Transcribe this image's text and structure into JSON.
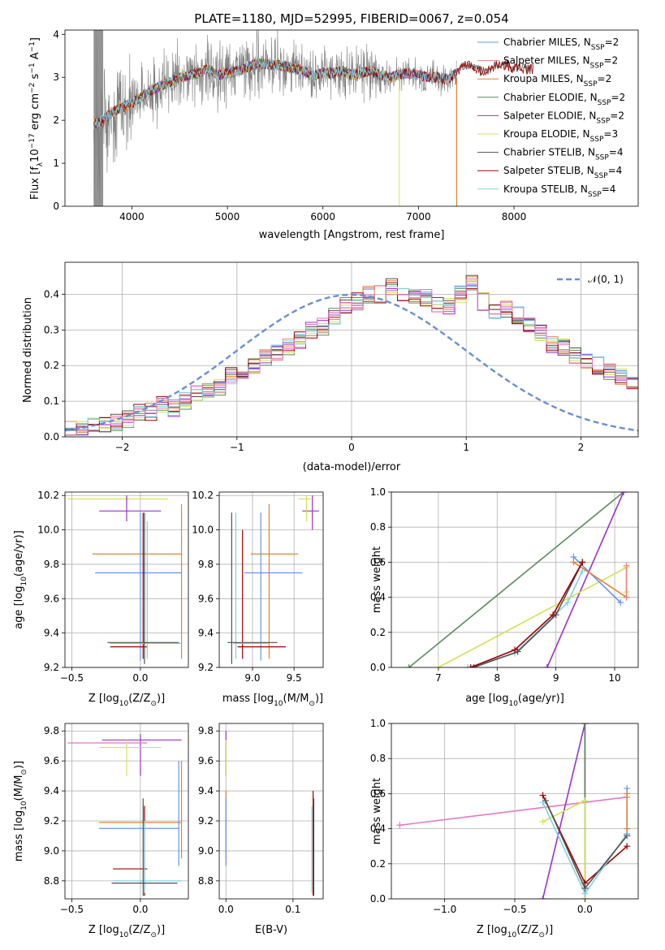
{
  "figure": {
    "title": "PLATE=1180, MJD=52995, FIBERID=0067, z=0.054"
  },
  "colors": {
    "chabrier_miles": "#6495ed",
    "salpeter_miles": "#f08080",
    "kroupa_miles": "#e88030",
    "chabrier_elodie": "#5a8a5a",
    "salpeter_elodie": "#9932cc",
    "kroupa_elodie": "#d4e157",
    "chabrier_stelib": "#505050",
    "salpeter_stelib": "#a00000",
    "kroupa_stelib": "#80d0e0",
    "data": "#808080",
    "pink": "#e377c2"
  },
  "chart_data": [
    {
      "id": "spectrum",
      "type": "line",
      "xlabel": "wavelength [Angstrom, rest frame]",
      "ylabel": "Flux [f$_\\lambda$10$^{-17}$ erg cm$^{-2}$ s$^{-1}$ A$^{-1}$]",
      "ylabel_main": "Flux [f",
      "ylabel_sub": "λ",
      "ylabel_rest": "10",
      "ylabel_e1": "−17",
      "ylabel_mid1": " erg cm",
      "ylabel_e2": "−2",
      "ylabel_mid2": " s",
      "ylabel_e3": "−1",
      "ylabel_mid3": " A",
      "ylabel_e4": "−1",
      "ylabel_end": "]",
      "xlim": [
        3300,
        9300
      ],
      "ylim": [
        0,
        4.1
      ],
      "xticks": [
        "4000",
        "5000",
        "6000",
        "7000",
        "8000"
      ],
      "yticks": [
        "0",
        "1",
        "2",
        "3",
        "4"
      ],
      "legend": [
        {
          "label": "Chabrier MILES, N",
          "n": "2"
        },
        {
          "label": "Salpeter MILES, N",
          "n": "2"
        },
        {
          "label": "Kroupa MILES, N",
          "n": "2"
        },
        {
          "label": "Chabrier ELODIE, N",
          "n": "2"
        },
        {
          "label": "Salpeter ELODIE, N",
          "n": "2"
        },
        {
          "label": "Kroupa ELODIE, N",
          "n": "3"
        },
        {
          "label": "Chabrier STELIB, N",
          "n": "4"
        },
        {
          "label": "Salpeter STELIB, N",
          "n": "4"
        },
        {
          "label": "Kroupa STELIB, N",
          "n": "4"
        }
      ],
      "legend_sub": "SSP",
      "continuum": [
        [
          3600,
          1.9
        ],
        [
          3700,
          2.0
        ],
        [
          3800,
          2.2
        ],
        [
          3900,
          2.3
        ],
        [
          4000,
          2.4
        ],
        [
          4100,
          2.55
        ],
        [
          4200,
          2.7
        ],
        [
          4300,
          2.8
        ],
        [
          4400,
          2.9
        ],
        [
          4500,
          3.0
        ],
        [
          4600,
          3.05
        ],
        [
          4700,
          3.1
        ],
        [
          4800,
          3.2
        ],
        [
          4900,
          3.05
        ],
        [
          5000,
          3.1
        ],
        [
          5100,
          3.15
        ],
        [
          5200,
          3.2
        ],
        [
          5300,
          3.35
        ],
        [
          5400,
          3.3
        ],
        [
          5500,
          3.3
        ],
        [
          5600,
          3.25
        ],
        [
          5700,
          3.2
        ],
        [
          5800,
          3.15
        ],
        [
          5900,
          3.05
        ],
        [
          6000,
          3.1
        ],
        [
          6100,
          3.1
        ],
        [
          6200,
          3.15
        ],
        [
          6300,
          3.05
        ],
        [
          6400,
          3.1
        ],
        [
          6500,
          3.15
        ],
        [
          6600,
          3.05
        ],
        [
          6700,
          3.0
        ],
        [
          6800,
          3.05
        ],
        [
          6900,
          3.1
        ],
        [
          7000,
          3.05
        ],
        [
          7100,
          3.0
        ],
        [
          7200,
          3.0
        ],
        [
          7300,
          2.95
        ],
        [
          7400,
          3.1
        ],
        [
          7500,
          3.3
        ],
        [
          7600,
          3.2
        ],
        [
          7700,
          3.1
        ],
        [
          7800,
          3.25
        ],
        [
          7900,
          3.3
        ],
        [
          8000,
          3.2
        ],
        [
          8100,
          3.2
        ],
        [
          8200,
          3.2
        ]
      ]
    },
    {
      "id": "residuals",
      "type": "histogram",
      "xlabel": "(data-model)/error",
      "ylabel": "Normed distribution",
      "xlim": [
        -2.5,
        2.5
      ],
      "ylim": [
        0,
        0.49
      ],
      "xticks": [
        "−2",
        "−1",
        "0",
        "1",
        "2"
      ],
      "yticks": [
        "0.0",
        "0.1",
        "0.2",
        "0.3",
        "0.4"
      ],
      "grid": true,
      "legend": "$\\mathcal{N}(0,1)$",
      "legend_text": "𝒩(0, 1)",
      "bin_width": 0.1,
      "bin_start": -2.5,
      "base_values": [
        0.02,
        0.02,
        0.03,
        0.03,
        0.04,
        0.05,
        0.07,
        0.07,
        0.09,
        0.08,
        0.1,
        0.12,
        0.13,
        0.14,
        0.17,
        0.18,
        0.2,
        0.22,
        0.24,
        0.25,
        0.27,
        0.3,
        0.31,
        0.34,
        0.37,
        0.38,
        0.4,
        0.4,
        0.42,
        0.4,
        0.39,
        0.39,
        0.37,
        0.37,
        0.4,
        0.43,
        0.38,
        0.35,
        0.36,
        0.34,
        0.31,
        0.29,
        0.26,
        0.25,
        0.23,
        0.21,
        0.2,
        0.18,
        0.17,
        0.15,
        0.14,
        0.12,
        0.12,
        0.1,
        0.09,
        0.08,
        0.08,
        0.07,
        0.06,
        0.04,
        0.03,
        0.02,
        0.02,
        0.02,
        0.02
      ]
    },
    {
      "id": "age_vs_Z",
      "type": "scatter",
      "xlabel": "Z [log$_{10}$(Z/Z$_\\odot$)]",
      "xlabel_text": "Z [log",
      "xlabel_sub": "10",
      "xlabel_rest": "(Z/Z",
      "xlabel_sun": "⊙",
      "xlabel_end": ")]",
      "ylabel": "age  [log$_{10}$(age/yr)]",
      "ylabel_text": "age  [log",
      "ylabel_sub": "10",
      "ylabel_rest": "(age/yr)]",
      "xlim": [
        -0.55,
        0.35
      ],
      "ylim": [
        9.2,
        10.22
      ],
      "xticks": [
        "−0.5",
        "0.0"
      ],
      "yticks": [
        "9.2",
        "9.4",
        "9.6",
        "9.8",
        "10.0",
        "10.2"
      ],
      "grid": true
    },
    {
      "id": "age_vs_mass",
      "type": "scatter",
      "xlabel": "mass [log$_{10}$(M/M$_\\odot$)]",
      "xlabel_text": "mass [log",
      "xlabel_sub": "10",
      "xlabel_rest": "(M/M",
      "xlabel_sun": "⊙",
      "xlabel_end": ")]",
      "xlim": [
        8.6,
        9.85
      ],
      "ylim": [
        9.2,
        10.22
      ],
      "xticks": [
        "9.0",
        "9.5"
      ],
      "yticks": [
        "9.2",
        "9.4",
        "9.6",
        "9.8",
        "10.0",
        "10.2"
      ],
      "grid": true
    },
    {
      "id": "massweight_vs_age",
      "type": "line",
      "xlabel": "age  [log$_{10}$(age/yr)]",
      "xlabel_text": "age  [log",
      "xlabel_sub": "10",
      "xlabel_rest": "(age/yr)]",
      "ylabel": "mass weight",
      "xlim": [
        6.2,
        10.4
      ],
      "ylim": [
        0,
        1.0
      ],
      "xticks": [
        "7",
        "8",
        "9",
        "10"
      ],
      "yticks": [
        "0.0",
        "0.2",
        "0.4",
        "0.6",
        "0.8",
        "1.0"
      ],
      "grid": true,
      "series": [
        {
          "color": "chabrier_elodie",
          "x": [
            6.5,
            10.15
          ],
          "y": [
            0.0,
            1.0
          ]
        },
        {
          "color": "salpeter_elodie",
          "x": [
            8.85,
            10.15
          ],
          "y": [
            0.0,
            1.0
          ]
        },
        {
          "color": "kroupa_elodie",
          "x": [
            7.0,
            10.2,
            10.2
          ],
          "y": [
            0.0,
            0.57,
            0.43
          ]
        },
        {
          "color": "kroupa_stelib",
          "x": [
            7.5,
            8.3,
            9.2,
            9.45
          ],
          "y": [
            0.0,
            0.08,
            0.37,
            0.55
          ]
        },
        {
          "color": "chabrier_miles",
          "x": [
            9.3,
            10.1
          ],
          "y": [
            0.63,
            0.37
          ]
        },
        {
          "color": "kroupa_miles",
          "x": [
            9.3,
            10.2
          ],
          "y": [
            0.6,
            0.4
          ]
        },
        {
          "color": "salpeter_miles",
          "x": [
            10.2,
            10.2
          ],
          "y": [
            0.58,
            0.4
          ]
        },
        {
          "color": "chabrier_stelib",
          "x": [
            7.6,
            8.35,
            9.0,
            9.45
          ],
          "y": [
            0.0,
            0.09,
            0.3,
            0.6
          ]
        },
        {
          "color": "salpeter_stelib",
          "x": [
            7.55,
            8.3,
            8.95,
            9.45
          ],
          "y": [
            0.0,
            0.1,
            0.3,
            0.6
          ]
        }
      ]
    },
    {
      "id": "mass_vs_Z",
      "type": "scatter",
      "xlabel": "Z [log$_{10}$(Z/Z$_\\odot$)]",
      "xlabel_text": "Z [log",
      "xlabel_sub": "10",
      "xlabel_rest": "(Z/Z",
      "xlabel_sun": "⊙",
      "xlabel_end": ")]",
      "ylabel": "mass [log$_{10}$(M/M$_\\odot$)]",
      "ylabel_text": "mass [log",
      "ylabel_sub": "10",
      "ylabel_rest": "(M/M",
      "ylabel_sun": "⊙",
      "ylabel_end": ")]",
      "xlim": [
        -0.55,
        0.35
      ],
      "ylim": [
        8.68,
        9.85
      ],
      "xticks": [
        "−0.5",
        "0.0"
      ],
      "yticks": [
        "8.8",
        "9.0",
        "9.2",
        "9.4",
        "9.6",
        "9.8"
      ],
      "grid": true
    },
    {
      "id": "mass_vs_ebv",
      "type": "scatter",
      "xlabel": "E(B-V)",
      "xlim": [
        -0.01,
        0.145
      ],
      "ylim": [
        8.68,
        9.85
      ],
      "xticks": [
        "0.0",
        "0.1"
      ],
      "yticks": [
        "8.8",
        "9.0",
        "9.2",
        "9.4",
        "9.6",
        "9.8"
      ],
      "grid": true
    },
    {
      "id": "massweight_vs_Z",
      "type": "line",
      "xlabel": "Z [log$_{10}$(Z/Z$_\\odot$)]",
      "xlabel_text": "Z [log",
      "xlabel_sub": "10",
      "xlabel_rest": "(Z/Z",
      "xlabel_sun": "⊙",
      "xlabel_end": ")]",
      "ylabel": "mass weight",
      "xlim": [
        -1.38,
        0.38
      ],
      "ylim": [
        0,
        1.0
      ],
      "xticks": [
        "−1.0",
        "−0.5",
        "0.0"
      ],
      "yticks": [
        "0.0",
        "0.2",
        "0.4",
        "0.6",
        "0.8",
        "1.0"
      ],
      "grid": true,
      "series": [
        {
          "color": "pink",
          "x": [
            -1.32,
            0.3
          ],
          "y": [
            0.42,
            0.58
          ]
        },
        {
          "color": "salpeter_elodie",
          "x": [
            -0.3,
            0.0,
            0.0
          ],
          "y": [
            0.0,
            1.0,
            0.0
          ]
        },
        {
          "color": "chabrier_elodie",
          "x": [
            0.0,
            0.0
          ],
          "y": [
            0.0,
            1.0
          ]
        },
        {
          "color": "kroupa_elodie",
          "x": [
            -0.3,
            0.0,
            0.0
          ],
          "y": [
            0.44,
            0.56,
            0.0
          ]
        },
        {
          "color": "salpeter_stelib",
          "x": [
            -0.3,
            0.0,
            0.3
          ],
          "y": [
            0.59,
            0.09,
            0.3
          ]
        },
        {
          "color": "kroupa_stelib",
          "x": [
            -0.3,
            0.0,
            0.3
          ],
          "y": [
            0.55,
            0.03,
            0.37
          ]
        },
        {
          "color": "chabrier_stelib",
          "x": [
            -0.28,
            0.0,
            0.3
          ],
          "y": [
            0.56,
            0.06,
            0.36
          ]
        },
        {
          "color": "chabrier_miles",
          "x": [
            0.3,
            0.3
          ],
          "y": [
            0.63,
            0.37
          ]
        },
        {
          "color": "kroupa_miles",
          "x": [
            0.3,
            0.3
          ],
          "y": [
            0.6,
            0.4
          ]
        }
      ]
    }
  ],
  "errorbars": {
    "age_vs_Z": [
      {
        "color": "kroupa_elodie",
        "x": -0.5,
        "xe": [
          -0.53,
          0.2
        ],
        "y": 10.18,
        "ye": [
          10.18,
          10.18
        ]
      },
      {
        "color": "salpeter_elodie",
        "x": -0.1,
        "xe": [
          -0.3,
          0.15
        ],
        "y": 10.11,
        "ye": [
          10.05,
          10.2
        ]
      },
      {
        "color": "kroupa_miles",
        "x": 0.3,
        "xe": [
          -0.35,
          0.3
        ],
        "y": 9.86,
        "ye": [
          9.25,
          10.15
        ]
      },
      {
        "color": "chabrier_miles",
        "x": 0.0,
        "xe": [
          -0.33,
          0.3
        ],
        "y": 9.75,
        "ye": [
          9.24,
          10.1
        ]
      },
      {
        "color": "salpeter_stelib",
        "x": 0.02,
        "xe": [
          -0.22,
          0.05
        ],
        "y": 9.32,
        "ye": [
          9.25,
          10.1
        ]
      },
      {
        "color": "kroupa_stelib",
        "x": 0.05,
        "xe": [
          -0.22,
          0.3
        ],
        "y": 9.34,
        "ye": [
          9.25,
          10.05
        ]
      },
      {
        "color": "chabrier_stelib",
        "x": 0.03,
        "xe": [
          -0.24,
          0.28
        ],
        "y": 9.345,
        "ye": [
          9.22,
          10.1
        ]
      }
    ],
    "age_vs_mass": [
      {
        "color": "salpeter_elodie",
        "x": 9.72,
        "xe": [
          9.6,
          9.8
        ],
        "y": 10.11,
        "ye": [
          10.0,
          10.2
        ]
      },
      {
        "color": "kroupa_elodie",
        "x": 9.65,
        "xe": [
          9.55,
          9.7
        ],
        "y": 10.18,
        "ye": [
          10.05,
          10.2
        ]
      },
      {
        "color": "kroupa_miles",
        "x": 9.2,
        "xe": [
          8.98,
          9.55
        ],
        "y": 9.86,
        "ye": [
          9.25,
          10.15
        ]
      },
      {
        "color": "chabrier_miles",
        "x": 9.1,
        "xe": [
          8.9,
          9.6
        ],
        "y": 9.75,
        "ye": [
          9.24,
          10.1
        ]
      },
      {
        "color": "salpeter_stelib",
        "x": 8.88,
        "xe": [
          8.82,
          9.4
        ],
        "y": 9.32,
        "ye": [
          9.25,
          10.0
        ]
      },
      {
        "color": "kroupa_stelib",
        "x": 8.8,
        "xe": [
          8.77,
          9.2
        ],
        "y": 9.34,
        "ye": [
          9.25,
          10.1
        ]
      },
      {
        "color": "chabrier_stelib",
        "x": 8.75,
        "xe": [
          8.7,
          9.3
        ],
        "y": 9.345,
        "ye": [
          9.22,
          10.1
        ]
      }
    ],
    "mass_vs_Z": [
      {
        "color": "salpeter_elodie",
        "x": 0.0,
        "xe": [
          -0.28,
          0.3
        ],
        "y": 9.74,
        "ye": [
          9.5,
          9.78
        ]
      },
      {
        "color": "pink",
        "x": -0.5,
        "xe": [
          -0.53,
          0.05
        ],
        "y": 9.72,
        "ye": [
          9.72,
          9.72
        ]
      },
      {
        "color": "kroupa_elodie",
        "x": -0.1,
        "xe": [
          -0.3,
          0.15
        ],
        "y": 9.69,
        "ye": [
          9.5,
          9.74
        ]
      },
      {
        "color": "kroupa_miles",
        "x": 0.3,
        "xe": [
          -0.3,
          0.3
        ],
        "y": 9.19,
        "ye": [
          8.95,
          9.6
        ]
      },
      {
        "color": "chabrier_miles",
        "x": 0.28,
        "xe": [
          -0.3,
          0.28
        ],
        "y": 9.15,
        "ye": [
          8.9,
          9.6
        ]
      },
      {
        "color": "salpeter_stelib",
        "x": 0.03,
        "xe": [
          -0.2,
          0.05
        ],
        "y": 8.88,
        "ye": [
          8.7,
          9.3
        ]
      },
      {
        "color": "kroupa_stelib",
        "x": 0.03,
        "xe": [
          -0.2,
          0.3
        ],
        "y": 8.8,
        "ye": [
          8.72,
          9.2
        ]
      },
      {
        "color": "chabrier_stelib",
        "x": 0.02,
        "xe": [
          -0.21,
          0.27
        ],
        "y": 8.785,
        "ye": [
          8.7,
          9.35
        ]
      }
    ],
    "mass_vs_ebv": [
      {
        "color": "salpeter_elodie",
        "x": 0.0,
        "xe": [
          0.0,
          0.0
        ],
        "y": 9.74,
        "ye": [
          9.5,
          9.8
        ]
      },
      {
        "color": "kroupa_elodie",
        "x": 0.0,
        "xe": [
          0.0,
          0.0
        ],
        "y": 9.69,
        "ye": [
          9.5,
          9.74
        ]
      },
      {
        "color": "kroupa_miles",
        "x": 0.0,
        "xe": [
          0.0,
          0.0
        ],
        "y": 9.19,
        "ye": [
          8.95,
          9.4
        ]
      },
      {
        "color": "chabrier_miles",
        "x": 0.0,
        "xe": [
          0.0,
          0.0
        ],
        "y": 9.15,
        "ye": [
          8.9,
          9.35
        ]
      },
      {
        "color": "salpeter_stelib",
        "x": 0.13,
        "xe": [
          0.13,
          0.13
        ],
        "y": 8.88,
        "ye": [
          8.7,
          9.4
        ]
      },
      {
        "color": "kroupa_stelib",
        "x": 0.128,
        "xe": [
          0.128,
          0.128
        ],
        "y": 8.8,
        "ye": [
          8.72,
          9.3
        ]
      },
      {
        "color": "chabrier_stelib",
        "x": 0.131,
        "xe": [
          0.131,
          0.131
        ],
        "y": 8.785,
        "ye": [
          8.7,
          9.35
        ]
      }
    ]
  }
}
